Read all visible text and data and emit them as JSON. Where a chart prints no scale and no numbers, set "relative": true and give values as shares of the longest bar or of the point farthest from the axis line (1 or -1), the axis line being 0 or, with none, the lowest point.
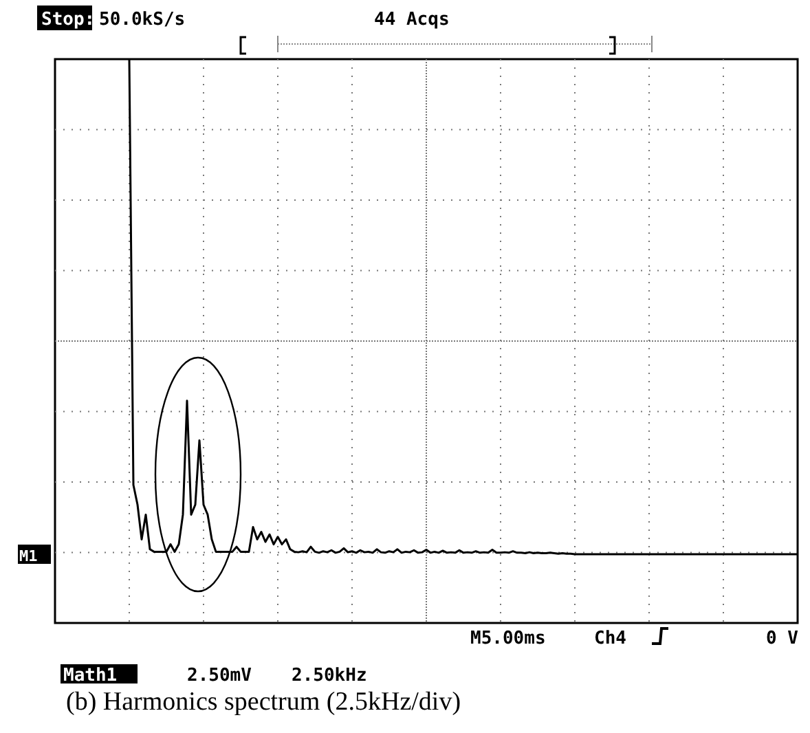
{
  "chart_data": {
    "type": "line",
    "relative": true,
    "grid": true,
    "marker": "none",
    "line_style": "solid",
    "categories": [
      null,
      null,
      null,
      null,
      null,
      null,
      null,
      null,
      null,
      null,
      null,
      null,
      null,
      null,
      null,
      null,
      null,
      null,
      null,
      null,
      null,
      null,
      null,
      null,
      null,
      null,
      null,
      null,
      null,
      null,
      null,
      null,
      null,
      null,
      null,
      null,
      null,
      null,
      null,
      null,
      null,
      null,
      null,
      null,
      null,
      null,
      null,
      null,
      null,
      null,
      null,
      null,
      null,
      null,
      null,
      null,
      null,
      null,
      null,
      null,
      null,
      null,
      null,
      null,
      null,
      null,
      null,
      null,
      null,
      null,
      null,
      null,
      null,
      null,
      null,
      null,
      null,
      null,
      null,
      null,
      null,
      null,
      null,
      null,
      null,
      null,
      null,
      null,
      null,
      null,
      null,
      null,
      null,
      null,
      null,
      null,
      null,
      null,
      null,
      null,
      null,
      null,
      null,
      null,
      null,
      null,
      null,
      null,
      null,
      null,
      null,
      null,
      null,
      null,
      null,
      null,
      null,
      null,
      null,
      null,
      null,
      null,
      null,
      null,
      null,
      null,
      null,
      null,
      null,
      null,
      null,
      null,
      null,
      null,
      null,
      null,
      null,
      null,
      null,
      null,
      null,
      null,
      null,
      null,
      null,
      null,
      null,
      null,
      null,
      null,
      null,
      null,
      null,
      null,
      null,
      null,
      null,
      null,
      null,
      null,
      null,
      null,
      null,
      null,
      null,
      null,
      null,
      null,
      null,
      null,
      null,
      null,
      null,
      null,
      null,
      null,
      null,
      null,
      null,
      null,
      null
    ],
    "series": [
      {
        "color": "#000000",
        "values": [
          null,
          null,
          null,
          null,
          null,
          null,
          null,
          null,
          null,
          null,
          null,
          null,
          null,
          null,
          null,
          null,
          null,
          null,
          1,
          0.14,
          0.1,
          0.03,
          0.08,
          0.01,
          0.005,
          0.005,
          0.005,
          0.005,
          0.02,
          0.005,
          0.02,
          0.08,
          0.31,
          0.08,
          0.1,
          0.23,
          0.1,
          0.08,
          0.03,
          0.005,
          0.005,
          0.005,
          0.005,
          0.005,
          0.015,
          0.005,
          0.005,
          0.005,
          0.055,
          0.03,
          0.045,
          0.025,
          0.04,
          0.02,
          0.035,
          0.02,
          0.03,
          0.01,
          0.005,
          0.004,
          0.006,
          0.004,
          0.015,
          0.005,
          0.003,
          0.006,
          0.004,
          0.008,
          0.003,
          0.005,
          0.012,
          0.004,
          0.006,
          0.003,
          0.008,
          0.004,
          0.005,
          0.003,
          0.01,
          0.004,
          0.003,
          0.006,
          0.004,
          0.01,
          0.003,
          0.005,
          0.004,
          0.008,
          0.003,
          0.004,
          0.009,
          0.003,
          0.005,
          0.003,
          0.007,
          0.003,
          0.004,
          0.003,
          0.008,
          0.003,
          0.004,
          0.003,
          0.006,
          0.003,
          0.004,
          0.003,
          0.009,
          0.003,
          0.003,
          0.004,
          0.003,
          0.006,
          0.003,
          0.003,
          0.002,
          0.004,
          0.002,
          0.003,
          0.002,
          0.002,
          0.003,
          0.002,
          0.001,
          0.002,
          0.001,
          0.001,
          0,
          0,
          0,
          0,
          0,
          0,
          0,
          0,
          0,
          0,
          0,
          0,
          0,
          0,
          0,
          0,
          0,
          0,
          0,
          0,
          0,
          0,
          0,
          0,
          0,
          0,
          0,
          0,
          0,
          0,
          0,
          0,
          0,
          0,
          0,
          0,
          0,
          0,
          0,
          0,
          0,
          0,
          0,
          0,
          0,
          0,
          0,
          0,
          0,
          0,
          0,
          0,
          0,
          0,
          0
        ]
      }
    ],
    "annotations": [
      "Stop:",
      "50.0kS/s",
      "44 Acqs",
      "M1",
      "M5.00ms",
      "Ch4",
      "0 V",
      "Math1",
      "2.50mV",
      "2.50kHz",
      "(b)  Harmonics spectrum (2.5kHz/div)"
    ]
  }
}
